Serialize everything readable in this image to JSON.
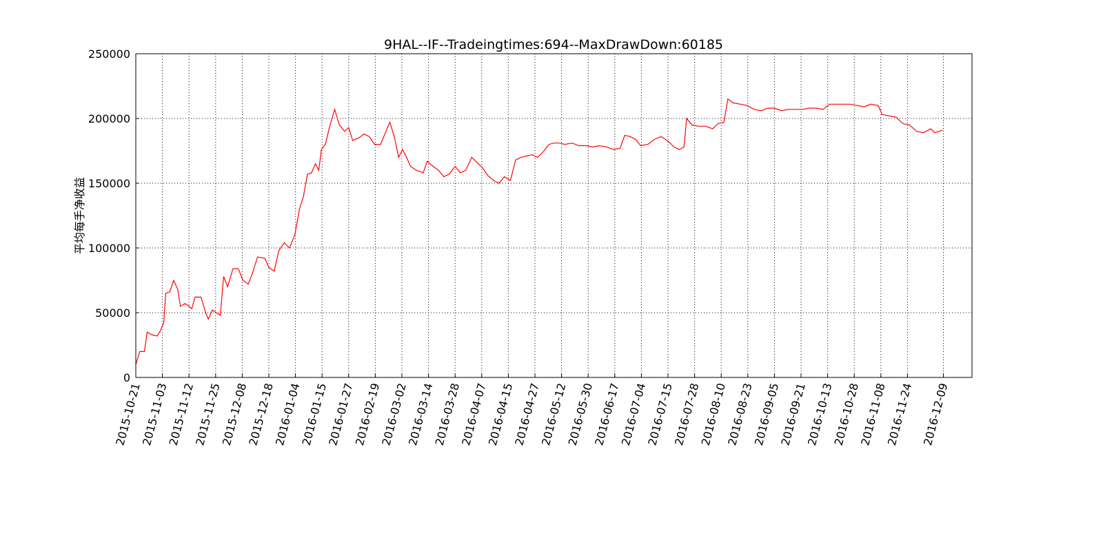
{
  "chart_data": {
    "type": "line",
    "title": "9HAL--IF--Tradeingtimes:694--MaxDrawDown:60185",
    "y_label": "平均每手净收益",
    "grid": true,
    "x": [
      0,
      6,
      13,
      17,
      24,
      32,
      36,
      42,
      45,
      51,
      57,
      63,
      67,
      74,
      80,
      84,
      89,
      98,
      105,
      109,
      115,
      121,
      127,
      132,
      138,
      146,
      154,
      161,
      169,
      175,
      183,
      194,
      200,
      208,
      215,
      223,
      231,
      239,
      246,
      252,
      258,
      264,
      270,
      275,
      279,
      285,
      291,
      299,
      306,
      314,
      320,
      326,
      335,
      343,
      351,
      359,
      368,
      376,
      382,
      389,
      395,
      401,
      407,
      413,
      422,
      432,
      438,
      447,
      455,
      463,
      471,
      480,
      488,
      496,
      505,
      513,
      521,
      529,
      538,
      546,
      554,
      563,
      571,
      579,
      587,
      596,
      604,
      612,
      621,
      629,
      637,
      645,
      656,
      666,
      677,
      687,
      697,
      708,
      718,
      728,
      735,
      743,
      751,
      759,
      770,
      780,
      790,
      801,
      809,
      817,
      824,
      828,
      836,
      846,
      857,
      867,
      875,
      884,
      890,
      898,
      909,
      919,
      929,
      940,
      950,
      960,
      971,
      981,
      991,
      1002,
      1012,
      1023,
      1033,
      1043,
      1054,
      1064,
      1074,
      1085,
      1095,
      1105,
      1116,
      1122,
      1132,
      1143,
      1153,
      1163,
      1174,
      1184,
      1195,
      1201,
      1207,
      1213
    ],
    "series": [
      {
        "color": "#ff0000",
        "values": [
          10000,
          20000,
          20000,
          35000,
          33000,
          32000,
          35000,
          42000,
          65000,
          66000,
          75000,
          68000,
          55000,
          57000,
          55000,
          53000,
          62000,
          62000,
          50000,
          45000,
          52000,
          50000,
          48000,
          78000,
          70000,
          84000,
          84000,
          75000,
          72000,
          80000,
          93000,
          92000,
          85000,
          82000,
          98000,
          104000,
          100000,
          110000,
          130000,
          140000,
          157000,
          158000,
          165000,
          160000,
          176000,
          180000,
          193000,
          207000,
          195000,
          190000,
          193000,
          183000,
          185000,
          188000,
          186000,
          180000,
          180000,
          190000,
          197000,
          185000,
          170000,
          176000,
          170000,
          163000,
          160000,
          158000,
          167000,
          163000,
          160000,
          155000,
          157000,
          163000,
          158000,
          160000,
          170000,
          166000,
          162000,
          156000,
          152000,
          150000,
          155000,
          152000,
          168000,
          170000,
          171000,
          172000,
          170000,
          174000,
          180000,
          181000,
          181000,
          180000,
          181000,
          179000,
          179000,
          178000,
          179000,
          178000,
          176000,
          177000,
          187000,
          186000,
          184000,
          179000,
          180000,
          184000,
          186000,
          182000,
          178000,
          176000,
          178000,
          200000,
          195000,
          194000,
          194000,
          192000,
          196000,
          197000,
          215000,
          212000,
          211000,
          210000,
          207000,
          206000,
          208000,
          208000,
          206000,
          207000,
          207000,
          207000,
          208000,
          208000,
          207000,
          211000,
          211000,
          211000,
          211000,
          210000,
          209000,
          211000,
          210000,
          203000,
          202000,
          201000,
          196000,
          195000,
          190000,
          189000,
          192000,
          189000,
          190000,
          191000
        ]
      }
    ],
    "xlim": [
      0,
      1257
    ],
    "xticks": [
      {
        "value": 0,
        "label": "2015-10-21"
      },
      {
        "value": 40,
        "label": "2015-11-03"
      },
      {
        "value": 80,
        "label": "2015-11-12"
      },
      {
        "value": 120,
        "label": "2015-11-25"
      },
      {
        "value": 160,
        "label": "2015-12-08"
      },
      {
        "value": 200,
        "label": "2015-12-18"
      },
      {
        "value": 240,
        "label": "2016-01-04"
      },
      {
        "value": 280,
        "label": "2016-01-15"
      },
      {
        "value": 320,
        "label": "2016-01-27"
      },
      {
        "value": 360,
        "label": "2016-02-19"
      },
      {
        "value": 400,
        "label": "2016-03-02"
      },
      {
        "value": 440,
        "label": "2016-03-14"
      },
      {
        "value": 480,
        "label": "2016-03-28"
      },
      {
        "value": 520,
        "label": "2016-04-07"
      },
      {
        "value": 560,
        "label": "2016-04-15"
      },
      {
        "value": 600,
        "label": "2016-04-27"
      },
      {
        "value": 640,
        "label": "2016-05-12"
      },
      {
        "value": 680,
        "label": "2016-05-30"
      },
      {
        "value": 720,
        "label": "2016-06-17"
      },
      {
        "value": 760,
        "label": "2016-07-04"
      },
      {
        "value": 800,
        "label": "2016-07-15"
      },
      {
        "value": 840,
        "label": "2016-07-28"
      },
      {
        "value": 880,
        "label": "2016-08-10"
      },
      {
        "value": 920,
        "label": "2016-08-23"
      },
      {
        "value": 960,
        "label": "2016-09-05"
      },
      {
        "value": 1000,
        "label": "2016-09-21"
      },
      {
        "value": 1040,
        "label": "2016-10-13"
      },
      {
        "value": 1080,
        "label": "2016-10-28"
      },
      {
        "value": 1120,
        "label": "2016-11-08"
      },
      {
        "value": 1160,
        "label": "2016-11-24"
      },
      {
        "value": 1214,
        "label": "2016-12-09"
      }
    ],
    "ylim": [
      0,
      250000
    ],
    "yticks": [
      0,
      50000,
      100000,
      150000,
      200000,
      250000
    ]
  }
}
